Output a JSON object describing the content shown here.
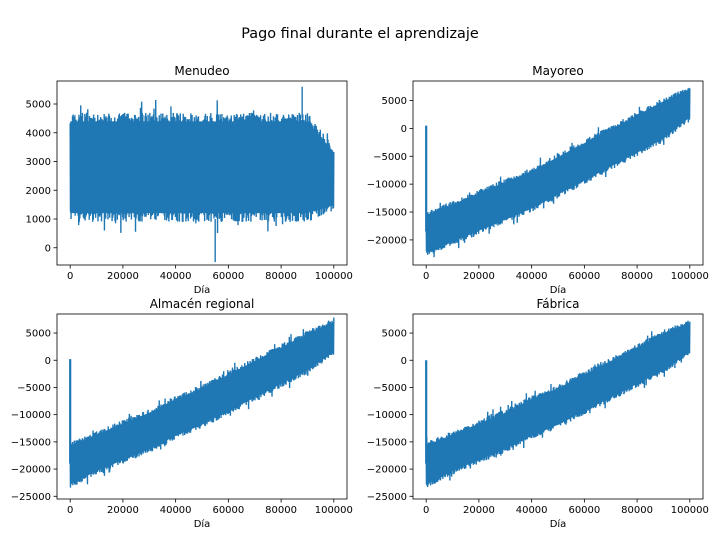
{
  "figure": {
    "title": "Pago final durante el aprendizaje"
  },
  "chart_data": [
    {
      "type": "line",
      "title": "Menudeo",
      "xlabel": "Día",
      "ylabel": "",
      "color": "#1f77b4",
      "xlim": [
        -5000,
        105000
      ],
      "ylim": [
        -600,
        5800
      ],
      "xticks": [
        0,
        20000,
        40000,
        60000,
        80000,
        100000
      ],
      "yticks": [
        0,
        1000,
        2000,
        3000,
        4000,
        5000
      ],
      "series": [
        {
          "x": [
            0,
            10000,
            20000,
            30000,
            40000,
            50000,
            60000,
            70000,
            80000,
            90000,
            100000
          ],
          "y_mean": [
            2700,
            2700,
            2700,
            2700,
            2700,
            2700,
            2700,
            2700,
            2700,
            2700,
            2700
          ],
          "y_band_low": [
            900,
            900,
            900,
            900,
            900,
            900,
            900,
            900,
            900,
            900,
            1300
          ],
          "y_band_high": [
            4700,
            4700,
            4700,
            4700,
            4700,
            4700,
            4700,
            4700,
            4700,
            4700,
            3500
          ],
          "y_min": -500,
          "y_max": 5600
        }
      ]
    },
    {
      "type": "line",
      "title": "Mayoreo",
      "xlabel": "Día",
      "ylabel": "",
      "color": "#1f77b4",
      "xlim": [
        -5000,
        105000
      ],
      "ylim": [
        -24500,
        8500
      ],
      "xticks": [
        0,
        20000,
        40000,
        60000,
        80000,
        100000
      ],
      "yticks": [
        -20000,
        -15000,
        -10000,
        -5000,
        0,
        5000
      ],
      "initial_spike": {
        "x": 0,
        "y_top": 500,
        "y_bottom": -18500
      },
      "series": [
        {
          "x": [
            0,
            10000,
            20000,
            30000,
            40000,
            50000,
            60000,
            70000,
            80000,
            90000,
            100000
          ],
          "y_mean": [
            -19000,
            -17000,
            -15000,
            -13000,
            -11000,
            -8500,
            -6000,
            -3500,
            -1000,
            1500,
            4000
          ],
          "y_band_low": [
            -23000,
            -21000,
            -19000,
            -17000,
            -15000,
            -12500,
            -10000,
            -7500,
            -5000,
            -2500,
            1500
          ],
          "y_band_high": [
            -15000,
            -13000,
            -11000,
            -9000,
            -7000,
            -4500,
            -2000,
            500,
            3000,
            5500,
            7500
          ]
        }
      ]
    },
    {
      "type": "line",
      "title": "Almacén regional",
      "xlabel": "Día",
      "ylabel": "",
      "color": "#1f77b4",
      "xlim": [
        -5000,
        105000
      ],
      "ylim": [
        -25500,
        8500
      ],
      "xticks": [
        0,
        20000,
        40000,
        60000,
        80000,
        100000
      ],
      "yticks": [
        -25000,
        -20000,
        -15000,
        -10000,
        -5000,
        0,
        5000
      ],
      "initial_spike": {
        "x": 0,
        "y_top": 200,
        "y_bottom": -19000
      },
      "series": [
        {
          "x": [
            0,
            10000,
            20000,
            30000,
            40000,
            50000,
            60000,
            70000,
            80000,
            90000,
            100000
          ],
          "y_mean": [
            -19000,
            -17000,
            -15000,
            -13000,
            -10500,
            -8500,
            -6000,
            -3500,
            -1000,
            1500,
            4000
          ],
          "y_band_low": [
            -23500,
            -21000,
            -19000,
            -17000,
            -14500,
            -12500,
            -10000,
            -7500,
            -5000,
            -2500,
            1000
          ],
          "y_band_high": [
            -15000,
            -13000,
            -11000,
            -9000,
            -6500,
            -4500,
            -2000,
            500,
            3000,
            5500,
            7500
          ]
        }
      ]
    },
    {
      "type": "line",
      "title": "Fábrica",
      "xlabel": "Día",
      "ylabel": "",
      "color": "#1f77b4",
      "xlim": [
        -5000,
        105000
      ],
      "ylim": [
        -25500,
        8500
      ],
      "xticks": [
        0,
        20000,
        40000,
        60000,
        80000,
        100000
      ],
      "yticks": [
        -25000,
        -20000,
        -15000,
        -10000,
        -5000,
        0,
        5000
      ],
      "initial_spike": {
        "x": 0,
        "y_top": 0,
        "y_bottom": -19000
      },
      "series": [
        {
          "x": [
            0,
            10000,
            20000,
            30000,
            40000,
            50000,
            60000,
            70000,
            80000,
            90000,
            100000
          ],
          "y_mean": [
            -19000,
            -17000,
            -15000,
            -13000,
            -10500,
            -8500,
            -6000,
            -3500,
            -1000,
            1500,
            4000
          ],
          "y_band_low": [
            -23500,
            -21000,
            -19000,
            -17000,
            -14500,
            -12500,
            -10000,
            -7500,
            -5000,
            -2500,
            1000
          ],
          "y_band_high": [
            -15000,
            -13000,
            -11000,
            -9000,
            -6500,
            -4500,
            -2000,
            500,
            3000,
            5500,
            7500
          ]
        }
      ]
    }
  ]
}
